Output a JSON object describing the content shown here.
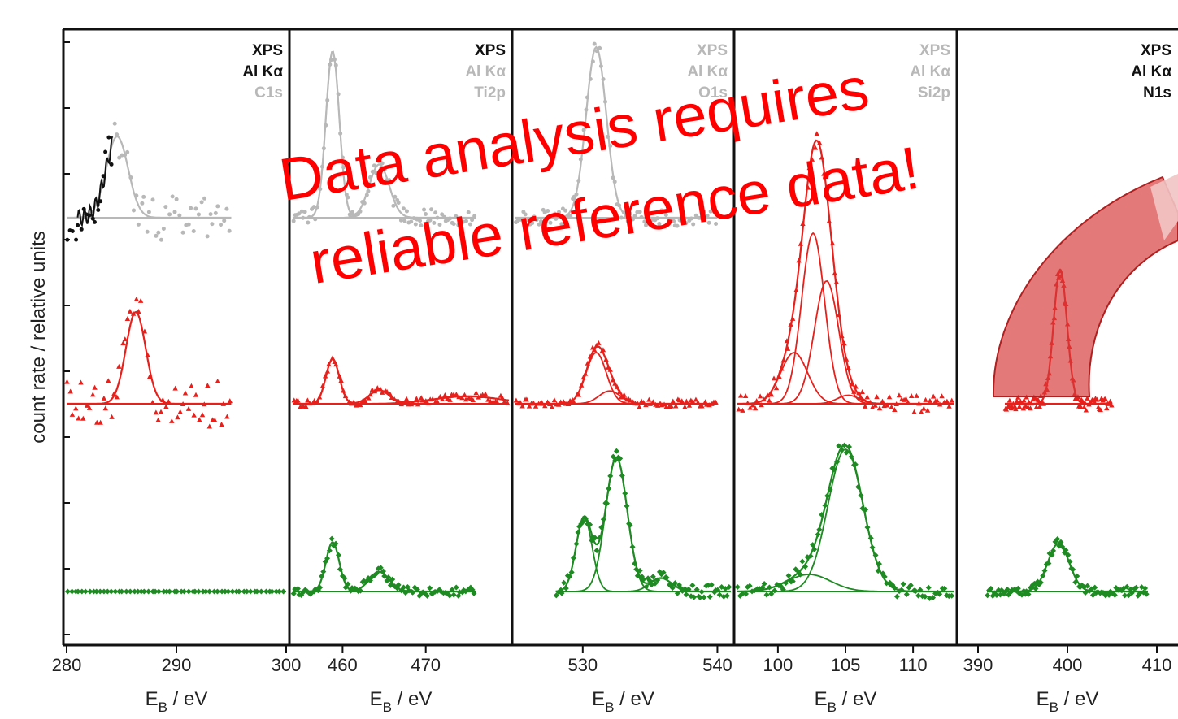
{
  "chart_data": {
    "type": "line",
    "ylabel": "count rate / relative units",
    "colors": {
      "top": "#111111",
      "top_faded": "#b8b8b8",
      "mid": "#e8201c",
      "bottom": "#1e8a22",
      "arrow": "#d63a3a"
    },
    "overlay": {
      "line1": "Data analysis requires",
      "line2": "reliable reference data!"
    },
    "panels": [
      {
        "id": "C1s",
        "labels": [
          "XPS",
          "Al Kα",
          "C1s"
        ],
        "label_colors": [
          "#111111",
          "#111111",
          "#b8b8b8"
        ],
        "xlim": [
          280,
          300
        ],
        "xticks": [
          "280",
          "290",
          "300"
        ],
        "xtick_values": [
          280,
          290,
          300
        ],
        "xlabel": "E",
        "xlabel_sub": "B",
        "xlabel_unit": " / eV",
        "series": [
          {
            "level": "top",
            "x_range": [
              280,
              295
            ],
            "baseline": 0.0,
            "peaks": [
              {
                "center": 284.6,
                "height": 1.0,
                "width": 1.0
              }
            ],
            "style": "segmented"
          },
          {
            "level": "mid",
            "x_range": [
              280,
              295
            ],
            "baseline": 0.0,
            "peaks": [
              {
                "center": 286.3,
                "height": 1.0,
                "width": 0.9
              }
            ],
            "style": "red"
          },
          {
            "level": "bottom",
            "x_range": [
              280,
              300
            ],
            "baseline": 0.0,
            "peaks": [],
            "style": "green"
          }
        ]
      },
      {
        "id": "Ti2p",
        "labels": [
          "XPS",
          "Al Kα",
          "Ti2p"
        ],
        "label_colors": [
          "#111111",
          "#b8b8b8",
          "#b8b8b8"
        ],
        "xlim": [
          454,
          480
        ],
        "xticks": [
          "460",
          "470"
        ],
        "xtick_values": [
          460,
          470
        ],
        "xlabel": "E",
        "xlabel_sub": "B",
        "xlabel_unit": " / eV",
        "series": [
          {
            "level": "top",
            "x_range": [
              454,
              476
            ],
            "baseline": 0.0,
            "peaks": [
              {
                "center": 458.8,
                "height": 1.0,
                "width": 0.8
              },
              {
                "center": 464.4,
                "height": 0.32,
                "width": 1.2
              }
            ],
            "style": "faded"
          },
          {
            "level": "mid",
            "x_range": [
              454,
              480
            ],
            "baseline": 0.0,
            "peaks": [
              {
                "center": 458.8,
                "height": 0.6,
                "width": 0.8
              },
              {
                "center": 464.4,
                "height": 0.18,
                "width": 1.2
              },
              {
                "center": 475,
                "height": 0.1,
                "width": 4.0
              }
            ],
            "style": "red"
          },
          {
            "level": "bottom",
            "x_range": [
              454,
              476
            ],
            "baseline": 0.0,
            "peaks": [
              {
                "center": 458.8,
                "height": 0.55,
                "width": 0.8
              },
              {
                "center": 464.4,
                "height": 0.22,
                "width": 1.2
              }
            ],
            "style": "green"
          }
        ]
      },
      {
        "id": "O1s",
        "labels": [
          "XPS",
          "Al Kα",
          "O1s"
        ],
        "label_colors": [
          "#b8b8b8",
          "#b8b8b8",
          "#b8b8b8"
        ],
        "xlim": [
          525,
          541
        ],
        "xticks": [
          "530",
          "540"
        ],
        "xtick_values": [
          530,
          540
        ],
        "xlabel": "E",
        "xlabel_sub": "B",
        "xlabel_unit": " / eV",
        "series": [
          {
            "level": "top",
            "x_range": [
              525,
              540
            ],
            "baseline": 0.0,
            "peaks": [
              {
                "center": 531.0,
                "height": 1.0,
                "width": 0.75
              }
            ],
            "style": "faded"
          },
          {
            "level": "mid",
            "x_range": [
              525,
              540
            ],
            "baseline": 0.0,
            "peaks": [
              {
                "center": 531.0,
                "height": 0.6,
                "width": 0.75
              },
              {
                "center": 532.0,
                "height": 0.15,
                "width": 0.8
              }
            ],
            "style": "red"
          },
          {
            "level": "bottom",
            "x_range": [
              528,
              541
            ],
            "baseline": 0.0,
            "peaks": [
              {
                "center": 530.1,
                "height": 0.55,
                "width": 0.6
              },
              {
                "center": 532.5,
                "height": 1.0,
                "width": 0.8
              },
              {
                "center": 535.8,
                "height": 0.1,
                "width": 0.8
              }
            ],
            "style": "green"
          }
        ]
      },
      {
        "id": "Si2p",
        "labels": [
          "XPS",
          "Al Kα",
          "Si2p"
        ],
        "label_colors": [
          "#b8b8b8",
          "#b8b8b8",
          "#b8b8b8"
        ],
        "xlim": [
          97,
          113
        ],
        "xticks": [
          "100",
          "105",
          "110"
        ],
        "xtick_values": [
          100,
          105,
          110
        ],
        "xlabel": "E",
        "xlabel_sub": "B",
        "xlabel_unit": " / eV",
        "series": [
          {
            "level": "mid",
            "x_range": [
              97,
              113
            ],
            "baseline": 0.0,
            "peaks": [
              {
                "center": 101.2,
                "height": 0.3,
                "width": 1.0
              },
              {
                "center": 102.6,
                "height": 1.0,
                "width": 0.85
              },
              {
                "center": 103.6,
                "height": 0.72,
                "width": 0.9
              },
              {
                "center": 105.2,
                "height": 0.05,
                "width": 0.8
              }
            ],
            "style": "red"
          },
          {
            "level": "bottom",
            "x_range": [
              97,
              113
            ],
            "baseline": 0.0,
            "peaks": [
              {
                "center": 102.3,
                "height": 0.12,
                "width": 1.6
              },
              {
                "center": 105.0,
                "height": 1.0,
                "width": 1.3
              }
            ],
            "style": "green"
          }
        ]
      },
      {
        "id": "N1s",
        "labels": [
          "XPS",
          "Al Kα",
          "N1s"
        ],
        "label_colors": [
          "#111111",
          "#111111",
          "#111111"
        ],
        "xlim": [
          388,
          412
        ],
        "xticks": [
          "390",
          "400",
          "410"
        ],
        "xtick_values": [
          390,
          400,
          410
        ],
        "xlabel": "E",
        "xlabel_sub": "B",
        "xlabel_unit": " / eV",
        "series": [
          {
            "level": "mid",
            "x_range": [
              393,
              405
            ],
            "baseline": 0.0,
            "peaks": [
              {
                "center": 399.2,
                "height": 1.0,
                "width": 0.75
              }
            ],
            "style": "red"
          },
          {
            "level": "bottom",
            "x_range": [
              391,
              409
            ],
            "baseline": 0.0,
            "peaks": [
              {
                "center": 399.0,
                "height": 0.5,
                "width": 1.2
              }
            ],
            "style": "green"
          }
        ]
      }
    ]
  }
}
